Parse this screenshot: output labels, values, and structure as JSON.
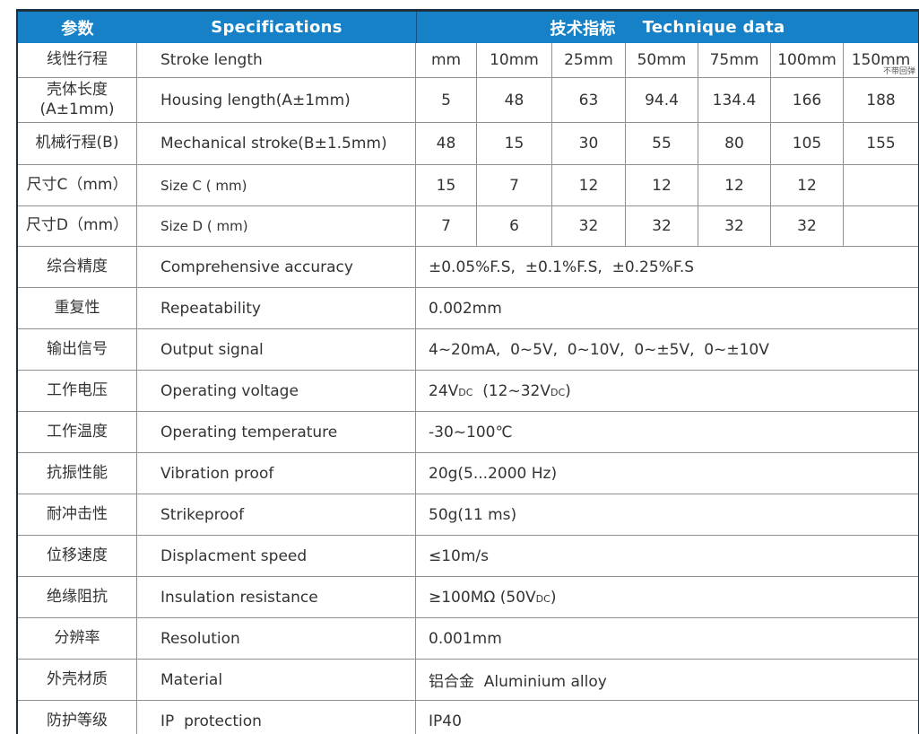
{
  "colors": {
    "header_bg": "#1781c8",
    "header_text": "#ffffff",
    "grid_line": "#8f8f8f",
    "outer_border": "#20303f",
    "body_text": "#333333"
  },
  "table": {
    "header": {
      "param": "参数",
      "spec": "Specifications",
      "tech_cn": "技术指标",
      "tech_en": "Technique data"
    },
    "stroke_row": {
      "cn": "线性行程",
      "en": "Stroke length",
      "cells": [
        "mm",
        "10mm",
        "25mm",
        "50mm",
        "75mm",
        "100mm",
        "150mm"
      ],
      "note": "不带回弹"
    },
    "grid_rows": [
      {
        "cn": "壳体长度",
        "cn2": "(A±1mm)",
        "en": "Housing length(A±1mm)",
        "cells": [
          "5",
          "48",
          "63",
          "94.4",
          "134.4",
          "166",
          "188"
        ]
      },
      {
        "cn": "机械行程(B)",
        "en": "Mechanical stroke(B±1.5mm)",
        "cells": [
          "48",
          "15",
          "30",
          "55",
          "80",
          "105",
          "155"
        ]
      },
      {
        "cn": "尺寸C（mm）",
        "en": "Size C ( mm)",
        "cells": [
          "15",
          "7",
          "12",
          "12",
          "12",
          "12",
          ""
        ]
      },
      {
        "cn": "尺寸D（mm）",
        "en": "Size D ( mm)",
        "cells": [
          "7",
          "6",
          "32",
          "32",
          "32",
          "32",
          ""
        ]
      }
    ],
    "span_rows": [
      {
        "cn": "综合精度",
        "en": "Comprehensive accuracy",
        "parts": [
          "±0.05%F.S,  ±0.1%F.S,  ±0.25%F.S"
        ]
      },
      {
        "cn": "重复性",
        "en": "Repeatability",
        "parts": [
          "0.002mm"
        ]
      },
      {
        "cn": "输出信号",
        "en": "Output signal",
        "parts": [
          "4~20mA,  0~5V,  0~10V,  0~±5V,  0~±10V"
        ]
      },
      {
        "cn": "工作电压",
        "en": "Operating voltage",
        "parts": [
          "24V",
          "DC",
          "  (12~32V",
          "DC",
          ")"
        ]
      },
      {
        "cn": "工作温度",
        "en": "Operating temperature",
        "parts": [
          "-30~100℃"
        ]
      },
      {
        "cn": "抗振性能",
        "en": "Vibration proof",
        "parts": [
          "20g(5...2000 Hz)"
        ]
      },
      {
        "cn": "耐冲击性",
        "en": "Strikeproof",
        "parts": [
          "50g(11 ms)"
        ]
      },
      {
        "cn": "位移速度",
        "en": "Displacment speed",
        "parts": [
          "≤10m/s"
        ]
      },
      {
        "cn": "绝缘阻抗",
        "en": "Insulation resistance",
        "parts": [
          "≥100MΩ (50V",
          "DC",
          ")"
        ]
      },
      {
        "cn": "分辨率",
        "en": "Resolution",
        "parts": [
          "0.001mm"
        ]
      },
      {
        "cn": "外壳材质",
        "en": "Material",
        "parts": [
          "铝合金  Aluminium alloy"
        ]
      },
      {
        "cn": "防护等级",
        "en": "IP  protection",
        "parts": [
          "IP40"
        ]
      }
    ]
  }
}
